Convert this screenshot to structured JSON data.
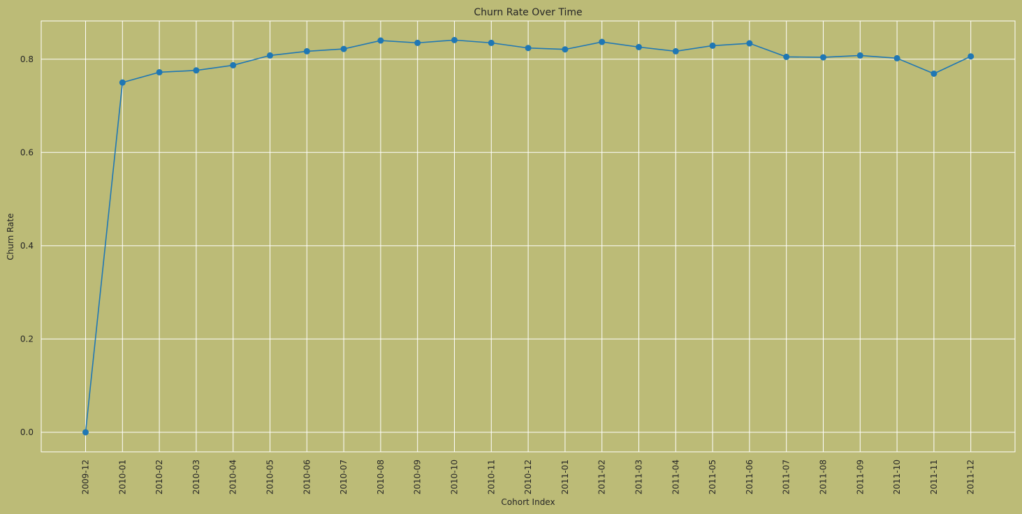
{
  "chart_data": {
    "type": "line",
    "title": "Churn Rate Over Time",
    "xlabel": "Cohort Index",
    "ylabel": "Churn Rate",
    "x": [
      "2009-12",
      "2010-01",
      "2010-02",
      "2010-03",
      "2010-04",
      "2010-05",
      "2010-06",
      "2010-07",
      "2010-08",
      "2010-09",
      "2010-10",
      "2010-11",
      "2010-12",
      "2011-01",
      "2011-02",
      "2011-03",
      "2011-04",
      "2011-05",
      "2011-06",
      "2011-07",
      "2011-08",
      "2011-09",
      "2011-10",
      "2011-11",
      "2011-12"
    ],
    "series": [
      {
        "values": [
          0.0,
          0.75,
          0.772,
          0.776,
          0.787,
          0.808,
          0.817,
          0.822,
          0.84,
          0.835,
          0.841,
          0.835,
          0.824,
          0.821,
          0.837,
          0.826,
          0.817,
          0.829,
          0.834,
          0.805,
          0.804,
          0.808,
          0.802,
          0.769,
          0.806
        ],
        "color": "#1f77b4"
      }
    ],
    "yticks": [
      "0.0",
      "0.2",
      "0.4",
      "0.6",
      "0.8"
    ],
    "ytick_values": [
      0.0,
      0.2,
      0.4,
      0.6,
      0.8
    ],
    "ylim": [
      -0.042,
      0.882
    ],
    "grid": true,
    "marker": "circle",
    "background_color": "#bcbb77",
    "grid_color": "#ffffff",
    "text_color": "#262626"
  }
}
